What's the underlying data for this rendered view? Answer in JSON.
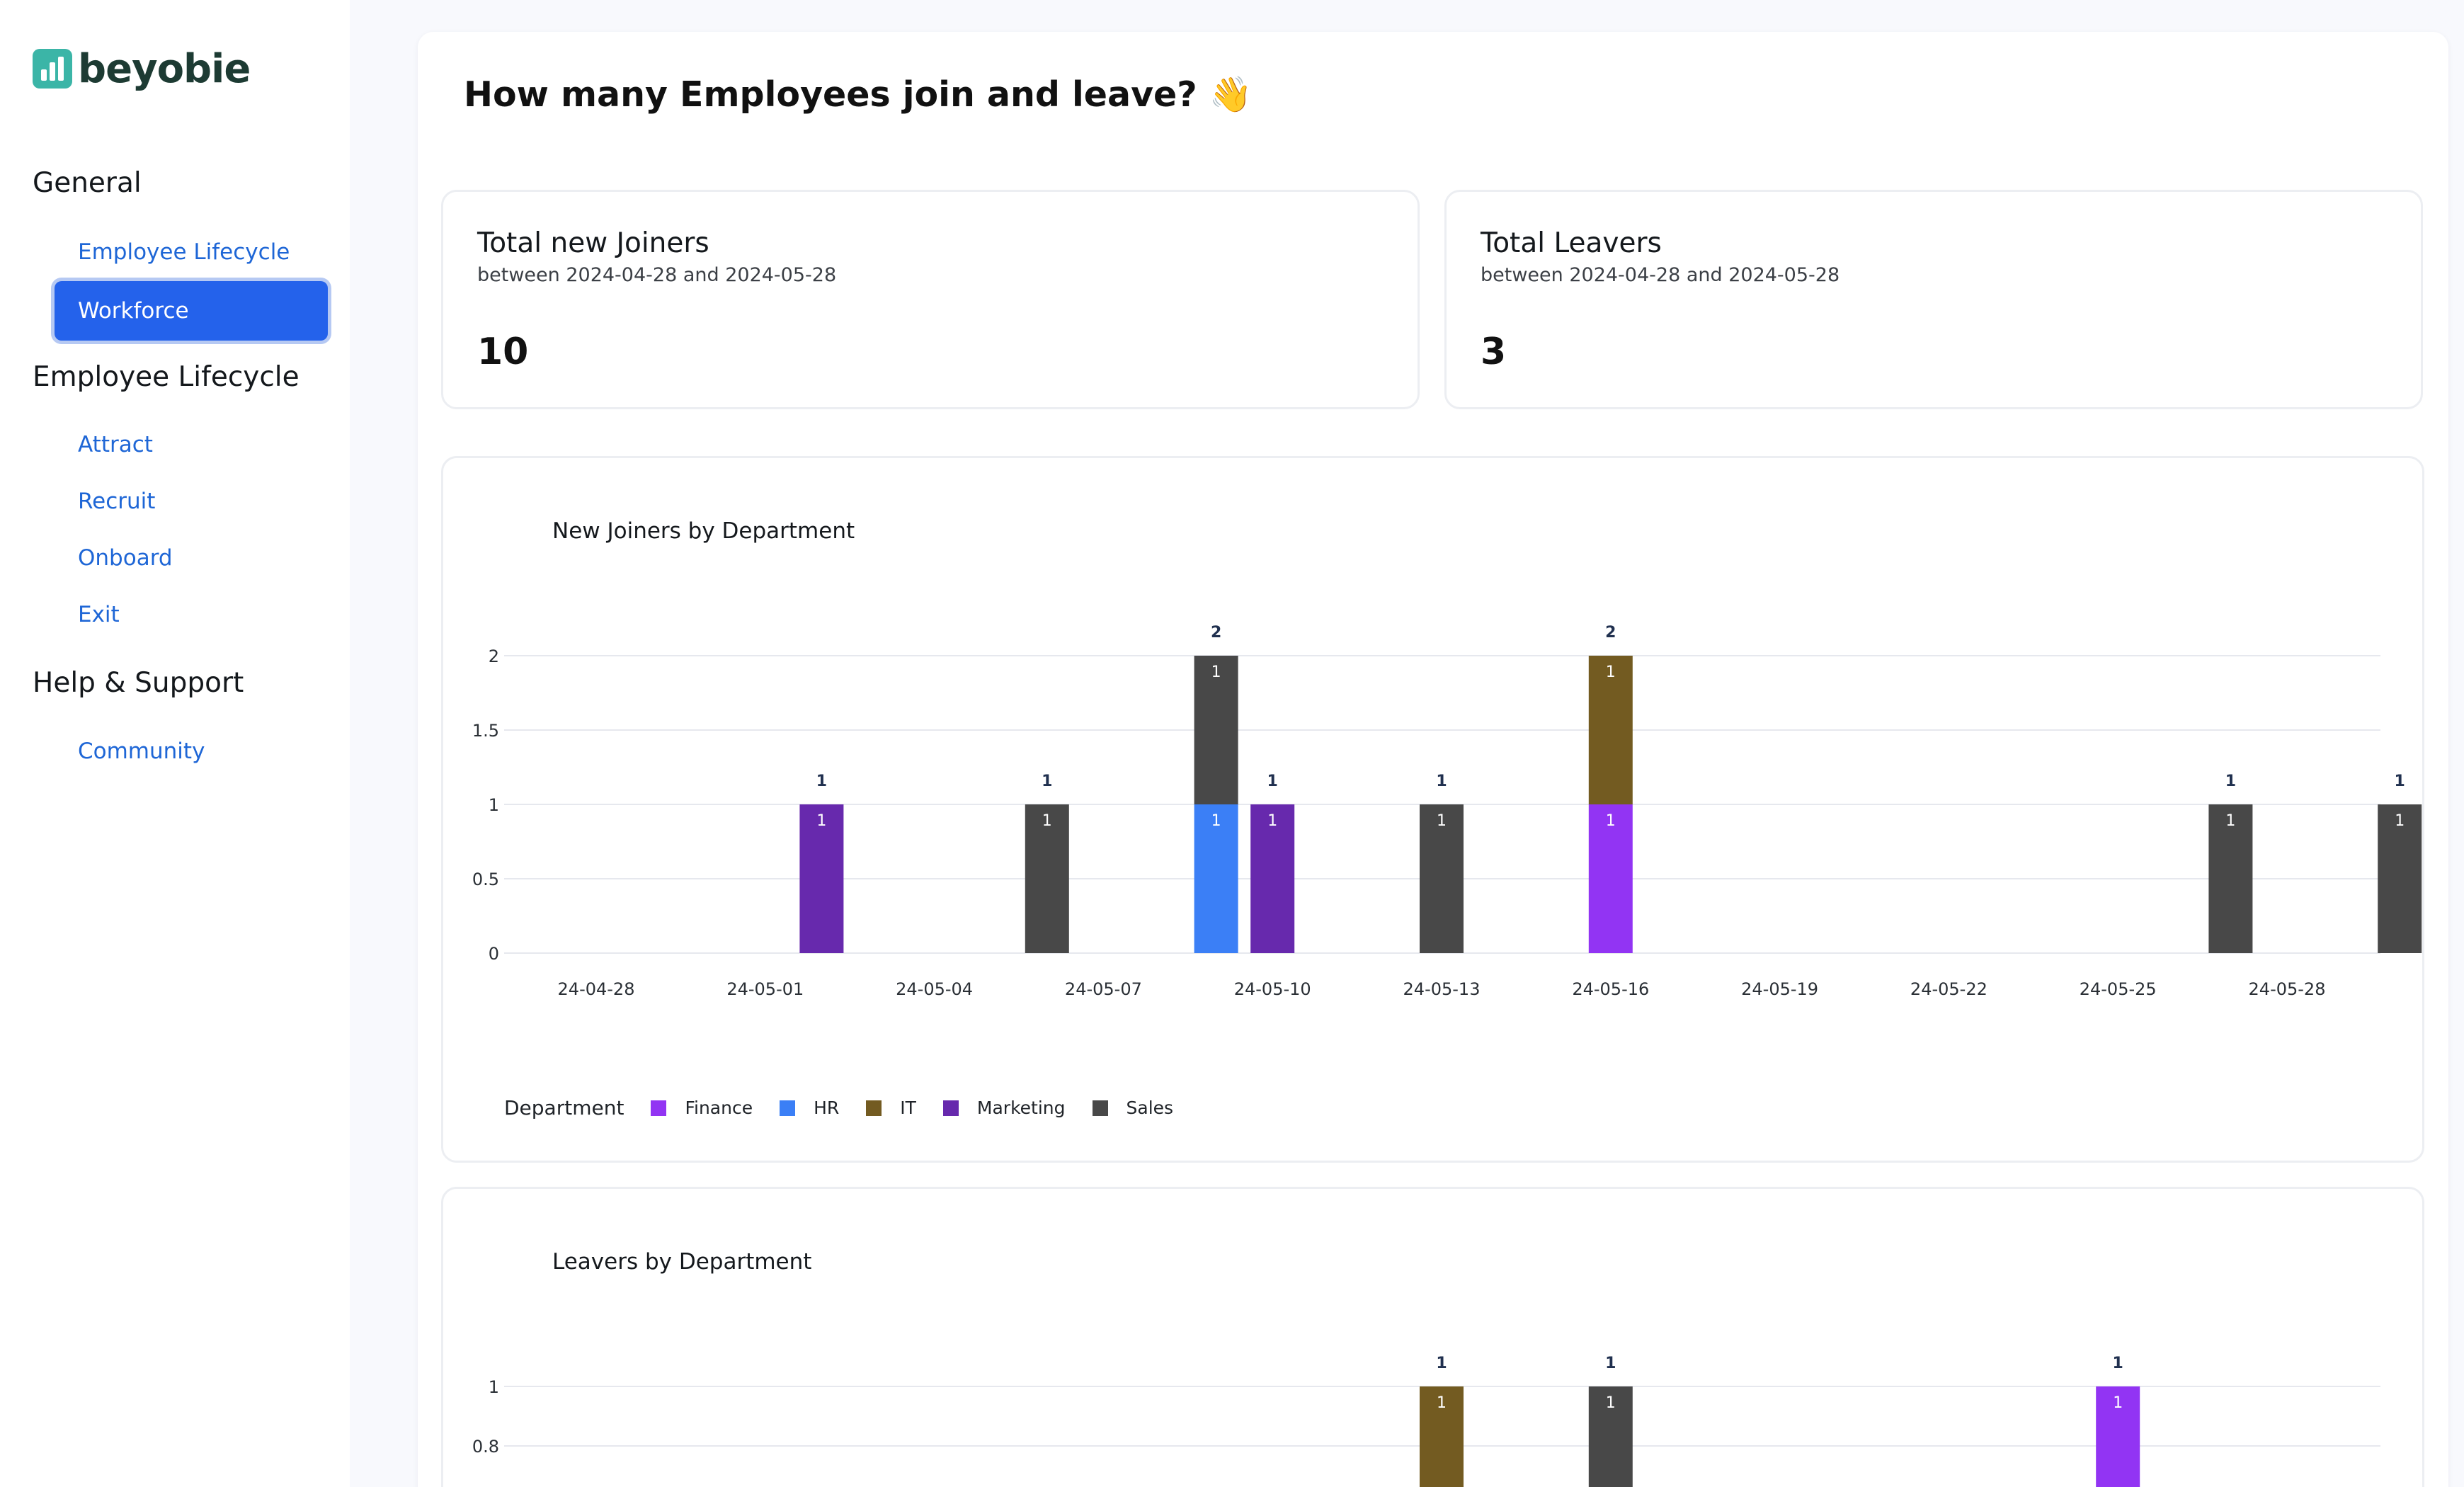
{
  "brand": {
    "name": "beyobie"
  },
  "sidebar": {
    "sections": [
      {
        "title": "General",
        "items": [
          {
            "label": "Employee Lifecycle"
          },
          {
            "label": "Workforce",
            "active": true
          }
        ]
      },
      {
        "title": "Employee Lifecycle",
        "items": [
          {
            "label": "Attract"
          },
          {
            "label": "Recruit"
          },
          {
            "label": "Onboard"
          },
          {
            "label": "Exit"
          }
        ]
      },
      {
        "title": "Help & Support",
        "items": [
          {
            "label": "Community"
          }
        ]
      }
    ]
  },
  "page": {
    "title": "How many Employees join and leave? 👋"
  },
  "kpis": [
    {
      "title": "Total new Joiners",
      "subtitle": "between 2024-04-28 and 2024-05-28",
      "value": "10"
    },
    {
      "title": "Total Leavers",
      "subtitle": "between 2024-04-28 and 2024-05-28",
      "value": "3"
    }
  ],
  "colors": {
    "Finance": "#9234f3",
    "HR": "#3b7ff6",
    "IT": "#735b21",
    "Marketing": "#6729ad",
    "Sales": "#484848",
    "accent": "#2462eb",
    "link": "#1e66d6"
  },
  "chart_data": [
    {
      "type": "bar",
      "stacked": true,
      "title": "New Joiners by Department",
      "x_ticks": [
        "24-04-28",
        "24-05-01",
        "24-05-04",
        "24-05-07",
        "24-05-10",
        "24-05-13",
        "24-05-16",
        "24-05-19",
        "24-05-22",
        "24-05-25",
        "24-05-28"
      ],
      "y_ticks": [
        "0",
        "0.5",
        "1",
        "1.5",
        "2"
      ],
      "ylim": [
        0,
        2
      ],
      "legend_title": "Department",
      "legend": [
        "Finance",
        "HR",
        "IT",
        "Marketing",
        "Sales"
      ],
      "legend_placement": "bottom-left",
      "grid": true,
      "bars": [
        {
          "date": "2024-05-02",
          "segments": [
            {
              "dept": "Marketing",
              "value": 1
            }
          ],
          "total": "1"
        },
        {
          "date": "2024-05-06",
          "segments": [
            {
              "dept": "Sales",
              "value": 1
            }
          ],
          "total": "1"
        },
        {
          "date": "2024-05-09",
          "segments": [
            {
              "dept": "HR",
              "value": 1
            },
            {
              "dept": "Sales",
              "value": 1
            }
          ],
          "total": "2"
        },
        {
          "date": "2024-05-10",
          "segments": [
            {
              "dept": "Marketing",
              "value": 1
            }
          ],
          "total": "1"
        },
        {
          "date": "2024-05-13",
          "segments": [
            {
              "dept": "Sales",
              "value": 1
            }
          ],
          "total": "1"
        },
        {
          "date": "2024-05-16",
          "segments": [
            {
              "dept": "Finance",
              "value": 1
            },
            {
              "dept": "IT",
              "value": 1
            }
          ],
          "total": "2"
        },
        {
          "date": "2024-05-27",
          "segments": [
            {
              "dept": "Sales",
              "value": 1
            }
          ],
          "total": "1"
        },
        {
          "date": "2024-05-30",
          "segments": [
            {
              "dept": "Sales",
              "value": 1
            }
          ],
          "total": "1"
        }
      ]
    },
    {
      "type": "bar",
      "stacked": true,
      "title": "Leavers by Department",
      "y_ticks": [
        "0.8",
        "1"
      ],
      "ylim": [
        0,
        1
      ],
      "grid": true,
      "bars": [
        {
          "date": "2024-05-13",
          "segments": [
            {
              "dept": "IT",
              "value": 1
            }
          ],
          "total": "1"
        },
        {
          "date": "2024-05-16",
          "segments": [
            {
              "dept": "Sales",
              "value": 1
            }
          ],
          "total": "1"
        },
        {
          "date": "2024-05-25",
          "segments": [
            {
              "dept": "Finance",
              "value": 1
            }
          ],
          "total": "1"
        }
      ]
    }
  ]
}
